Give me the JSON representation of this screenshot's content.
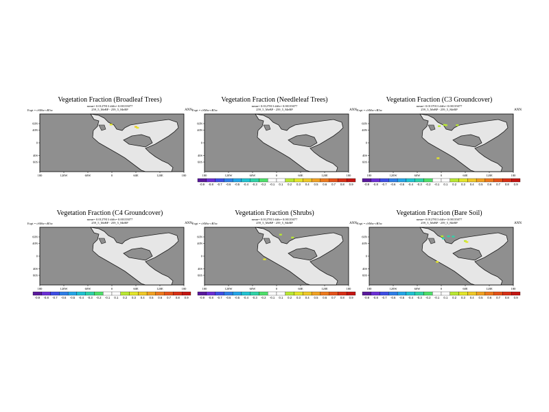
{
  "chart_data": [
    {
      "type": "heatmap",
      "title": "Vegetation Fraction (Broadleaf Trees)",
      "stats": "mean= 0.0127813  diffs= 0.00135077",
      "expt": "Expt = cSMw-cR5w",
      "label": "259_5_MeBP - 259_5_MeBP",
      "season": "ANN",
      "patches": [
        {
          "lon": -2,
          "lat": 57,
          "value": 0.3
        },
        {
          "lon": 60,
          "lat": 50,
          "value": 0.4
        },
        {
          "lon": 64,
          "lat": 47,
          "value": 0.3
        }
      ]
    },
    {
      "type": "heatmap",
      "title": "Vegetation Fraction (Needleleaf Trees)",
      "stats": "mean= 0.0127813  diffs= 0.00135077",
      "expt": "Expt = cSMw-cR5w",
      "label": "259_5_MeBP - 259_5_MeBP",
      "season": "ANN",
      "patches": []
    },
    {
      "type": "heatmap",
      "title": "Vegetation Fraction (C3 Groundcover)",
      "stats": "mean= 0.0137013  diffs= 0.00135077",
      "expt": "Expt = cSMw-cR5w",
      "label": "259_5_MeBP - 259_5_MeBP",
      "season": "ANN",
      "patches": [
        {
          "lon": 8,
          "lat": 56,
          "value": 0.2
        },
        {
          "lon": 12,
          "lat": 55,
          "value": 0.2
        },
        {
          "lon": -5,
          "lat": 52,
          "value": 0.2
        },
        {
          "lon": 40,
          "lat": 55,
          "value": 0.2
        },
        {
          "lon": -8,
          "lat": -48,
          "value": 0.3
        }
      ]
    },
    {
      "type": "heatmap",
      "title": "Vegetation Fraction (C4 Groundcover)",
      "stats": "mean= 0.0127813  diffs= 0.00135077",
      "expt": "Expt = cSMw-cR5w",
      "label": "259_5_MeBP - 259_5_MeBP",
      "season": "ANN",
      "patches": []
    },
    {
      "type": "heatmap",
      "title": "Vegetation Fraction (Shrubs)",
      "stats": "mean= 0.0127813  diffs= 0.00135077",
      "expt": "Expt = cSMw-cR5w",
      "label": "259_5_MeBP - 259_5_MeBP",
      "season": "ANN",
      "patches": [
        {
          "lon": 10,
          "lat": 67,
          "value": 0.2
        },
        {
          "lon": 40,
          "lat": 58,
          "value": 0.2
        },
        {
          "lon": -30,
          "lat": -10,
          "value": 0.3
        }
      ]
    },
    {
      "type": "heatmap",
      "title": "Vegetation Fraction (Bare Soil)",
      "stats": "mean= 0.0127813  diffs= 0.00135077",
      "expt": "Expt = cSMw-cR5w",
      "label": "259_5_MeBP - 259_5_MeBP",
      "season": "ANN",
      "patches": [
        {
          "lon": 2,
          "lat": 62,
          "value": 0.2
        },
        {
          "lon": 18,
          "lat": 62,
          "value": -0.3
        },
        {
          "lon": 30,
          "lat": 61,
          "value": -0.3
        },
        {
          "lon": 5,
          "lat": 55,
          "value": -0.3
        },
        {
          "lon": 60,
          "lat": 47,
          "value": 0.2
        },
        {
          "lon": 64,
          "lat": 44,
          "value": 0.3
        },
        {
          "lon": -10,
          "lat": -18,
          "value": 0.3
        }
      ]
    }
  ],
  "axes": {
    "lon_ticks": [
      "180",
      "120W",
      "60W",
      "0",
      "60E",
      "120E",
      "180"
    ],
    "lat_ticks": [
      "60N",
      "40N",
      "0",
      "40S",
      "60S"
    ],
    "lon_range": [
      -180,
      180
    ],
    "lat_range": [
      -90,
      90
    ]
  },
  "colorbar": {
    "labels": [
      "-0.9",
      "-0.8",
      "-0.7",
      "-0.6",
      "-0.5",
      "-0.4",
      "-0.3",
      "-0.2",
      "-0.1",
      "0.1",
      "0.2",
      "0.3",
      "0.4",
      "0.5",
      "0.6",
      "0.7",
      "0.8",
      "0.9"
    ],
    "colors": [
      "#5a1a9c",
      "#6c2fd6",
      "#3f4fe6",
      "#2f7fe8",
      "#25a6e8",
      "#22c3d2",
      "#2fd3a8",
      "#4fdf6a",
      "#ffffff",
      "#ffffff",
      "#b9e832",
      "#e4e62b",
      "#f0c928",
      "#f2a223",
      "#ee7a1e",
      "#e5531a",
      "#d83016",
      "#c41512"
    ]
  },
  "colors": {
    "ocean": "#8f8f8f",
    "land": "#e6e6e6",
    "coast": "#1a1a1a"
  }
}
